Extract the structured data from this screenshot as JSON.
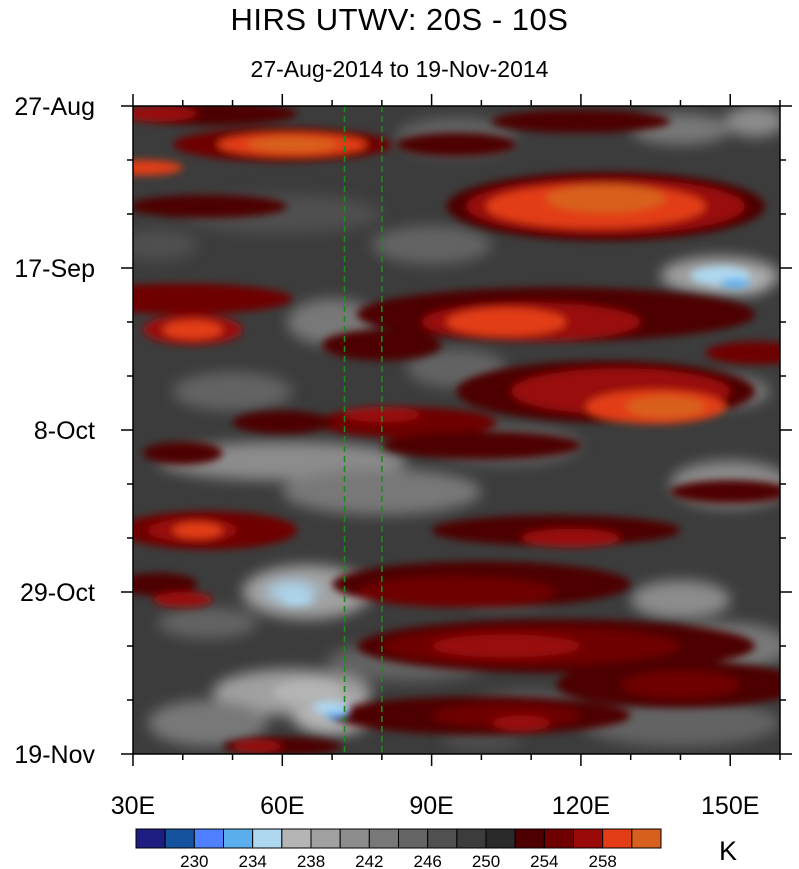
{
  "chart_data": {
    "type": "heatmap",
    "title": "HIRS UTWV: 20S - 10S",
    "subtitle": "27-Aug-2014 to 19-Nov-2014",
    "x_axis": {
      "range": [
        30,
        160
      ],
      "ticks": [
        30,
        60,
        90,
        120,
        150
      ],
      "tick_labels": [
        "30E",
        "60E",
        "90E",
        "120E",
        "150E"
      ],
      "minor_step": 10
    },
    "y_axis": {
      "start": "27-Aug-2014",
      "end": "19-Nov-2014",
      "range_days": [
        0,
        84
      ],
      "ticks_days": [
        0,
        21,
        42,
        63,
        84
      ],
      "tick_labels": [
        "27-Aug",
        "17-Sep",
        "8-Oct",
        "29-Oct",
        "19-Nov"
      ],
      "minor_step_days": 7
    },
    "reference_lines": {
      "style": "dashed",
      "color": "#1d8a1d",
      "longitudes": [
        72.5,
        80
      ]
    },
    "colorbar": {
      "unit": "K",
      "levels": [
        228,
        230,
        232,
        234,
        236,
        238,
        240,
        242,
        244,
        246,
        248,
        250,
        252,
        254,
        256,
        258,
        260
      ],
      "labeled_levels": [
        230,
        234,
        238,
        242,
        246,
        250,
        254,
        258
      ],
      "colors": [
        "#1e1e82",
        "#16539e",
        "#4f80ff",
        "#5aaeee",
        "#aed8f0",
        "#b4b4b4",
        "#a0a0a0",
        "#8c8c8c",
        "#787878",
        "#646464",
        "#505050",
        "#3c3c3c",
        "#2a2a2a",
        "#4e0000",
        "#6e0000",
        "#9a0a08",
        "#e23d16",
        "#d8601e"
      ]
    },
    "bands": [
      {
        "day_from": 0,
        "day_to": 8,
        "level": "warm",
        "description": "Warm (254-260 K) patches along 30-70E and 85-125E"
      },
      {
        "day_from": 8,
        "day_to": 14,
        "level": "warm",
        "description": "Strong warm maximum 105-150E"
      },
      {
        "day_from": 17,
        "day_to": 25,
        "level": "mixed",
        "description": "Cool patch near 140-155E, warm 30-50E and 90-130E"
      },
      {
        "day_from": 25,
        "day_to": 38,
        "level": "warm",
        "description": "Warm maximum 110-150E"
      },
      {
        "day_from": 40,
        "day_to": 50,
        "level": "cool",
        "description": "Mostly grey (242-250 K)"
      },
      {
        "day_from": 50,
        "day_to": 56,
        "level": "mixed",
        "description": "Warm 30-50E and 100-140E"
      },
      {
        "day_from": 56,
        "day_to": 70,
        "level": "mixed",
        "description": "Warm band 80-150E"
      },
      {
        "day_from": 70,
        "day_to": 84,
        "level": "cool",
        "description": "Cool minimum near 65-75E"
      }
    ]
  }
}
